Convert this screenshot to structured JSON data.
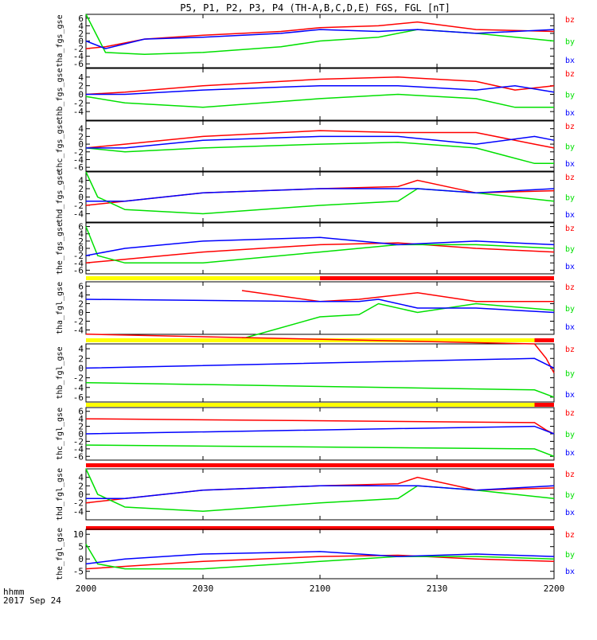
{
  "title": "P5, P1, P2, P3, P4 (TH-A,B,C,D,E) FGS, FGL [nT]",
  "footer": {
    "line1": "hhmm",
    "line2": "2017 Sep 24"
  },
  "colors": {
    "bz": "#ff0000",
    "by": "#00e000",
    "bx": "#0000ff",
    "bar_yellow": "#ffff00",
    "bar_red": "#ff0000"
  },
  "chart_data": {
    "type": "line",
    "x_unit": "hhmm",
    "xlim": [
      "2000",
      "2200"
    ],
    "x_ticks": [
      "2000",
      "2030",
      "2100",
      "2130",
      "2200"
    ],
    "legend": [
      "bz",
      "by",
      "bx"
    ],
    "legend_placement": "right",
    "panels": [
      {
        "ylabel": "tha_fgs_gse",
        "yticks": [
          "6",
          "4",
          "2",
          "0",
          "-2",
          "-4",
          "-6"
        ],
        "ylim": [
          -7,
          7
        ],
        "series": [
          {
            "name": "bz",
            "x": [
              "2000",
              "2005",
              "2015",
              "2030",
              "2050",
              "2100",
              "2115",
              "2125",
              "2140",
              "2200"
            ],
            "y": [
              -2,
              -1.5,
              0.5,
              1.5,
              2.5,
              3.5,
              4,
              5,
              3,
              2.5
            ]
          },
          {
            "name": "by",
            "x": [
              "2000",
              "2002",
              "2005",
              "2015",
              "2030",
              "2050",
              "2100",
              "2115",
              "2125",
              "2140",
              "2200"
            ],
            "y": [
              7,
              3,
              -3,
              -3.5,
              -3,
              -1.5,
              0,
              1,
              3,
              2,
              0
            ]
          },
          {
            "name": "bx",
            "x": [
              "2000",
              "2005",
              "2015",
              "2030",
              "2050",
              "2100",
              "2115",
              "2125",
              "2140",
              "2200"
            ],
            "y": [
              0,
              -2,
              0.5,
              1,
              2,
              3,
              2.5,
              3,
              2,
              3
            ]
          }
        ]
      },
      {
        "ylabel": "thb_fgs_gse",
        "yticks": [
          "4",
          "2",
          "0",
          "-2",
          "-4"
        ],
        "ylim": [
          -6,
          6
        ],
        "series": [
          {
            "name": "bz",
            "x": [
              "2000",
              "2010",
              "2030",
              "2100",
              "2120",
              "2140",
              "2150",
              "2200"
            ],
            "y": [
              0,
              0.5,
              2,
              3.5,
              4,
              3,
              1,
              2
            ]
          },
          {
            "name": "by",
            "x": [
              "2000",
              "2010",
              "2030",
              "2100",
              "2120",
              "2140",
              "2150",
              "2200"
            ],
            "y": [
              -0.5,
              -2,
              -3,
              -1,
              0,
              -1,
              -3,
              -3
            ]
          },
          {
            "name": "bx",
            "x": [
              "2000",
              "2010",
              "2030",
              "2100",
              "2120",
              "2140",
              "2150",
              "2200"
            ],
            "y": [
              0,
              0,
              1,
              2,
              2,
              1,
              2,
              0.5
            ]
          }
        ]
      },
      {
        "ylabel": "thc_fgs_gse",
        "yticks": [
          "4",
          "2",
          "0",
          "-2",
          "-4",
          "-6"
        ],
        "ylim": [
          -7,
          6
        ],
        "series": [
          {
            "name": "bz",
            "x": [
              "2000",
              "2010",
              "2030",
              "2100",
              "2120",
              "2140",
              "2155",
              "2200"
            ],
            "y": [
              -1,
              0,
              2,
              3.5,
              3,
              3,
              0,
              -1
            ]
          },
          {
            "name": "by",
            "x": [
              "2000",
              "2010",
              "2030",
              "2100",
              "2120",
              "2140",
              "2155",
              "2200"
            ],
            "y": [
              -1,
              -2,
              -1,
              0,
              0.5,
              -1,
              -5,
              -5
            ]
          },
          {
            "name": "bx",
            "x": [
              "2000",
              "2010",
              "2030",
              "2100",
              "2120",
              "2140",
              "2155",
              "2200"
            ],
            "y": [
              -1,
              -1,
              1,
              2,
              2,
              0,
              2,
              1
            ]
          }
        ]
      },
      {
        "ylabel": "thd_fgs_gse",
        "yticks": [
          "4",
          "2",
          "0",
          "-2",
          "-4"
        ],
        "ylim": [
          -6,
          6
        ],
        "series": [
          {
            "name": "bz",
            "x": [
              "2000",
              "2010",
              "2030",
              "2100",
              "2120",
              "2125",
              "2140",
              "2200"
            ],
            "y": [
              -2,
              -1,
              1,
              2,
              2.5,
              4,
              1,
              1.5
            ]
          },
          {
            "name": "by",
            "x": [
              "2000",
              "2003",
              "2010",
              "2030",
              "2100",
              "2120",
              "2125",
              "2140",
              "2200"
            ],
            "y": [
              6,
              0,
              -3,
              -4,
              -2,
              -1,
              2,
              1,
              -1
            ]
          },
          {
            "name": "bx",
            "x": [
              "2000",
              "2010",
              "2030",
              "2100",
              "2120",
              "2125",
              "2140",
              "2200"
            ],
            "y": [
              -1,
              -1,
              1,
              2,
              2,
              2,
              1,
              2
            ]
          }
        ]
      },
      {
        "ylabel": "the_fgs_gse",
        "yticks": [
          "6",
          "4",
          "2",
          "0",
          "-2",
          "-4",
          "-6"
        ],
        "ylim": [
          -7,
          7
        ],
        "series": [
          {
            "name": "bz",
            "x": [
              "2000",
              "2010",
              "2030",
              "2100",
              "2120",
              "2140",
              "2200"
            ],
            "y": [
              -4,
              -3,
              -1,
              1,
              1.5,
              0,
              -1
            ]
          },
          {
            "name": "by",
            "x": [
              "2000",
              "2003",
              "2010",
              "2030",
              "2100",
              "2120",
              "2140",
              "2200"
            ],
            "y": [
              6,
              -2,
              -4,
              -4,
              -1,
              1,
              1,
              0
            ]
          },
          {
            "name": "bx",
            "x": [
              "2000",
              "2010",
              "2030",
              "2100",
              "2120",
              "2140",
              "2200"
            ],
            "y": [
              -2,
              0,
              2,
              3,
              1,
              2,
              1
            ]
          }
        ]
      },
      {
        "ylabel": "tha_fgl_gse",
        "yticks": [
          "6",
          "4",
          "2",
          "0",
          "-2",
          "-4"
        ],
        "ylim": [
          -5,
          7
        ],
        "bar": {
          "yellow_until": "2100",
          "red_from": "2100"
        },
        "series": [
          {
            "name": "bz",
            "x": [
              "2040",
              "2100",
              "2110",
              "2125",
              "2140",
              "2200"
            ],
            "y": [
              5,
              2.5,
              3,
              4.5,
              2.5,
              2.5
            ]
          },
          {
            "name": "by",
            "x": [
              "2040",
              "2100",
              "2110",
              "2115",
              "2125",
              "2140",
              "2200"
            ],
            "y": [
              -6,
              -1,
              -0.5,
              2,
              0,
              2,
              0.5
            ]
          },
          {
            "name": "bx",
            "x": [
              "2000",
              "2100",
              "2110",
              "2115",
              "2125",
              "2140",
              "2200"
            ],
            "y": [
              3,
              2.5,
              2.5,
              3,
              1,
              1,
              0
            ]
          }
        ]
      },
      {
        "ylabel": "thb_fgl_gse",
        "yticks": [
          "4",
          "2",
          "0",
          "-2",
          "-4",
          "-6"
        ],
        "ylim": [
          -7,
          5
        ],
        "bar": {
          "yellow_until": "2155",
          "red_from": "2155"
        },
        "series": [
          {
            "name": "bz",
            "x": [
              "2000",
              "2155",
              "2158",
              "2200"
            ],
            "y": [
              7,
              5,
              2,
              -1
            ]
          },
          {
            "name": "by",
            "x": [
              "2000",
              "2155",
              "2200"
            ],
            "y": [
              -3,
              -4.5,
              -6
            ]
          },
          {
            "name": "bx",
            "x": [
              "2000",
              "2155",
              "2200"
            ],
            "y": [
              0,
              2,
              0
            ]
          }
        ]
      },
      {
        "ylabel": "thc_fgl_gse",
        "yticks": [
          "6",
          "4",
          "2",
          "0",
          "-2",
          "-4",
          "-6"
        ],
        "ylim": [
          -7,
          7
        ],
        "bar": {
          "yellow_until": "2155",
          "red_from": "2155"
        },
        "series": [
          {
            "name": "bz",
            "x": [
              "2000",
              "2155",
              "2158",
              "2200"
            ],
            "y": [
              4,
              3,
              1,
              0
            ]
          },
          {
            "name": "by",
            "x": [
              "2000",
              "2155",
              "2200"
            ],
            "y": [
              -3,
              -4,
              -6
            ]
          },
          {
            "name": "bx",
            "x": [
              "2000",
              "2155",
              "2200"
            ],
            "y": [
              0,
              2,
              0
            ]
          }
        ]
      },
      {
        "ylabel": "thd_fgl_gse",
        "yticks": [
          "4",
          "2",
          "0",
          "-2",
          "-4"
        ],
        "ylim": [
          -6,
          6
        ],
        "bar": {
          "yellow_until": "2000",
          "red_from": "2000"
        },
        "series": [
          {
            "name": "bz",
            "x": [
              "2000",
              "2010",
              "2030",
              "2100",
              "2120",
              "2125",
              "2140",
              "2200"
            ],
            "y": [
              -2,
              -1,
              1,
              2,
              2.5,
              4,
              1,
              1.5
            ]
          },
          {
            "name": "by",
            "x": [
              "2000",
              "2003",
              "2010",
              "2030",
              "2100",
              "2120",
              "2125",
              "2140",
              "2200"
            ],
            "y": [
              6,
              0,
              -3,
              -4,
              -2,
              -1,
              2,
              1,
              -1
            ]
          },
          {
            "name": "bx",
            "x": [
              "2000",
              "2010",
              "2030",
              "2100",
              "2120",
              "2125",
              "2140",
              "2200"
            ],
            "y": [
              -1,
              -1,
              1,
              2,
              2,
              2,
              1,
              2
            ]
          }
        ]
      },
      {
        "ylabel": "the_fgl_gse",
        "yticks": [
          "10",
          "5",
          "0",
          "-5"
        ],
        "ylim": [
          -8,
          12
        ],
        "bar": {
          "yellow_until": "2000",
          "red_from": "2000"
        },
        "series": [
          {
            "name": "bz",
            "x": [
              "2000",
              "2010",
              "2030",
              "2100",
              "2120",
              "2140",
              "2200"
            ],
            "y": [
              -4,
              -3,
              -1,
              1,
              1.5,
              0,
              -1
            ]
          },
          {
            "name": "by",
            "x": [
              "2000",
              "2003",
              "2010",
              "2030",
              "2100",
              "2120",
              "2140",
              "2200"
            ],
            "y": [
              6,
              -2,
              -4,
              -4,
              -1,
              1,
              1,
              0
            ]
          },
          {
            "name": "bx",
            "x": [
              "2000",
              "2010",
              "2030",
              "2100",
              "2120",
              "2140",
              "2200"
            ],
            "y": [
              -2,
              0,
              2,
              3,
              1,
              2,
              1
            ]
          }
        ]
      }
    ]
  }
}
